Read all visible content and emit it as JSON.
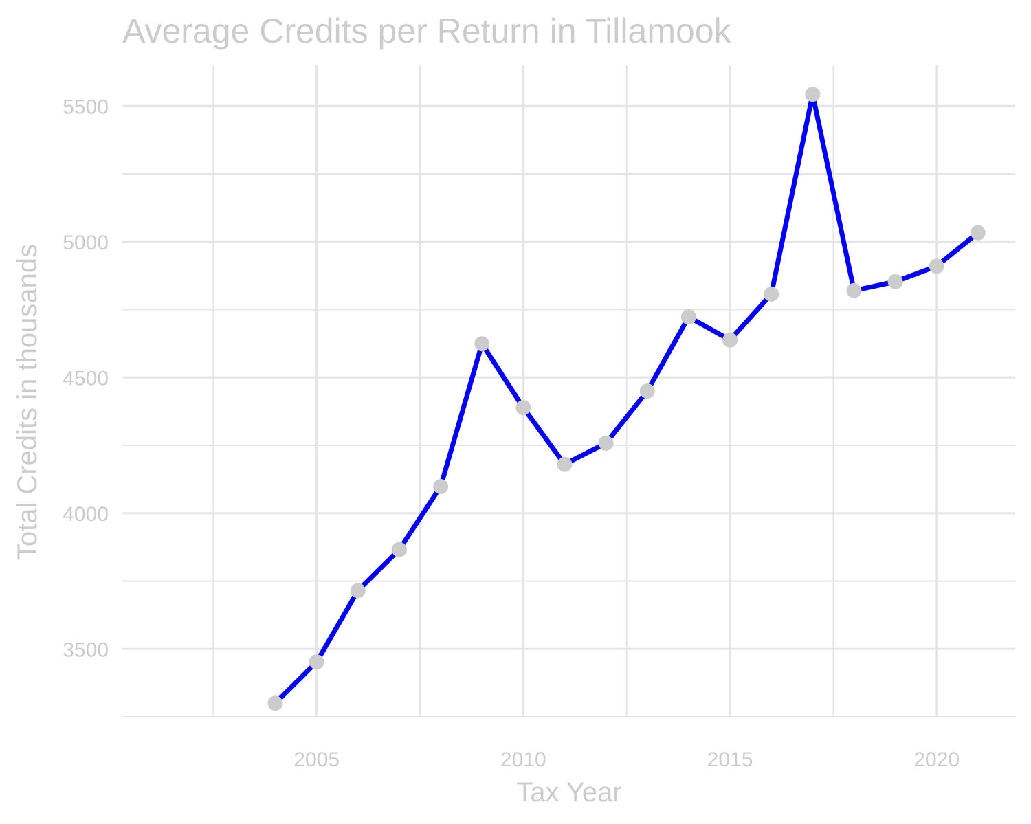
{
  "chart_data": {
    "type": "line",
    "title": "Average Credits per Return in Tillamook",
    "xlabel": "Tax Year",
    "ylabel": "Total Credits in thousands",
    "x": [
      2004,
      2005,
      2006,
      2007,
      2008,
      2009,
      2010,
      2011,
      2012,
      2013,
      2014,
      2015,
      2016,
      2017,
      2018,
      2019,
      2020,
      2021
    ],
    "series": [
      {
        "values": [
          3300,
          3452,
          3715,
          3866,
          4098,
          4624,
          4389,
          4180,
          4258,
          4450,
          4723,
          4638,
          4807,
          5543,
          4820,
          4853,
          4910,
          5033
        ]
      }
    ],
    "xlim": [
      2000.3,
      2021.9
    ],
    "ylim": [
      3250,
      5650
    ],
    "x_ticks": [
      2005,
      2010,
      2015,
      2020
    ],
    "y_ticks": [
      3500,
      4000,
      4500,
      5000,
      5500
    ],
    "x_minor_ticks": [
      2002.5,
      2007.5,
      2012.5,
      2017.5
    ],
    "y_minor_ticks": [
      3250,
      3750,
      4250,
      4750,
      5250
    ],
    "grid": true,
    "legend": "none",
    "colors": {
      "line": "#0000ff",
      "points": "#cccccc",
      "grid": "#e5e5e5",
      "text": "#cccccc"
    }
  }
}
